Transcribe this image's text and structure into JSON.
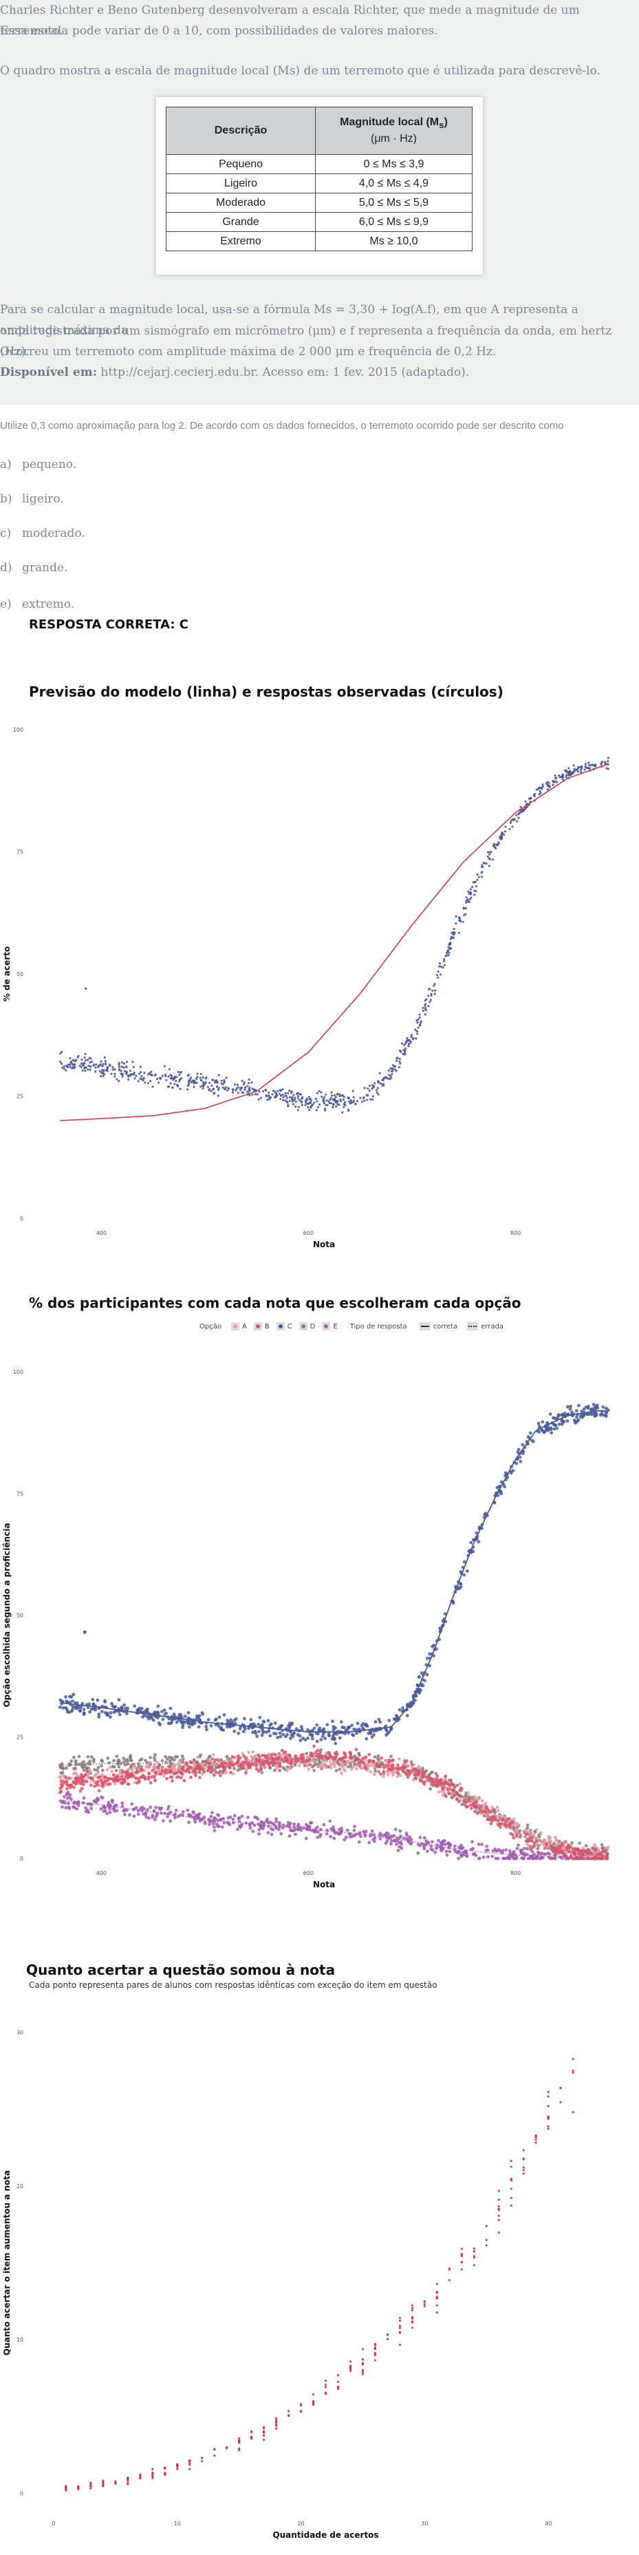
{
  "question": {
    "intro_line1": "Charles Richter e Beno Gutenberg desenvolveram a escala Richter, que mede a magnitude de um terremoto.",
    "intro_line2": "Essa escala pode variar de 0 a 10, com possibilidades de valores maiores.",
    "table_intro": "O quadro mostra a escala de magnitude local (Ms) de um terremoto que é utilizada para descrevê-lo.",
    "table": {
      "header_col1": "Descrição",
      "header_col2_line1": "Magnitude local (M",
      "header_col2_sub": "s",
      "header_col2_close": ")",
      "header_col2_line2": "(μm · Hz)",
      "rows": [
        {
          "desc": "Pequeno",
          "range": "0 ≤ Ms ≤ 3,9"
        },
        {
          "desc": "Ligeiro",
          "range": "4,0 ≤ Ms ≤ 4,9"
        },
        {
          "desc": "Moderado",
          "range": "5,0 ≤ Ms ≤ 5,9"
        },
        {
          "desc": "Grande",
          "range": "6,0 ≤ Ms ≤ 9,9"
        },
        {
          "desc": "Extremo",
          "range": "Ms ≥ 10,0"
        }
      ]
    },
    "formula_line1": "Para se calcular a magnitude local, usa-se a fórmula Ms = 3,30 + log(A.f), em que A representa a amplitude máxima da",
    "formula_line2": "onda registrada por um sismógrafo em micrômetro (μm) e f representa a frequência da onda, em hertz (Hz).",
    "formula_line3": "Ocorreu um terremoto com amplitude máxima de 2 000 μm e frequência de 0,2 Hz.",
    "source_label": "Disponível em:",
    "source_text": " http://cejarj.cecierj.edu.br. Acesso em: 1 fev. 2015 (adaptado).",
    "prompt": "Utilize 0,3 como aproximação para log 2. De acordo com os dados fornecidos, o terremoto ocorrido pode ser descrito como",
    "options": [
      {
        "letter": "a)",
        "text": "pequeno."
      },
      {
        "letter": "b)",
        "text": "ligeiro."
      },
      {
        "letter": "c)",
        "text": "moderado."
      },
      {
        "letter": "d)",
        "text": "grande."
      },
      {
        "letter": "e)",
        "text": "extremo."
      }
    ],
    "answer": "RESPOSTA CORRETA: C"
  },
  "colors": {
    "model_line": "#d03a4e",
    "observed_points": "#4a5a96",
    "opt_a": "#e59aa5",
    "opt_b": "#d9536a",
    "opt_c": "#4a5a96",
    "opt_d": "#8a7a7a",
    "opt_e": "#a15cb0",
    "chart3_points": "#c8344a"
  },
  "chart_data": [
    {
      "type": "scatter",
      "title": "Previsão do modelo (linha) e respostas observadas (círculos)",
      "xlabel": "Nota",
      "ylabel": "% de acerto",
      "x_ticks": [
        "400",
        "600",
        "800"
      ],
      "x_tick_values": [
        400,
        600,
        800
      ],
      "y_ticks": [
        "0",
        "25",
        "50",
        "75",
        "100"
      ],
      "xlim": [
        330,
        900
      ],
      "ylim": [
        0,
        100
      ],
      "series": [
        {
          "kind": "line",
          "x": [
            360,
            400,
            450,
            500,
            550,
            600,
            650,
            700,
            750,
            800,
            850,
            890
          ],
          "y": [
            20,
            20.4,
            21,
            22.5,
            26,
            34,
            46,
            60,
            73,
            83,
            90,
            93
          ]
        },
        {
          "kind": "points",
          "x": [
            360,
            400,
            450,
            500,
            550,
            580,
            600,
            620,
            640,
            660,
            680,
            700,
            720,
            740,
            760,
            780,
            800,
            820,
            840,
            860,
            880
          ],
          "y": [
            32,
            31,
            29,
            27.5,
            26,
            24.5,
            24,
            23.5,
            24,
            26,
            30,
            37,
            47,
            58,
            68,
            76,
            82,
            87,
            90,
            92,
            93
          ]
        }
      ]
    },
    {
      "type": "scatter",
      "title": "% dos participantes com cada nota que escolheram cada opção",
      "xlabel": "Nota",
      "ylabel": "Opção escolhida segundo a proficiência",
      "x_ticks": [
        "400",
        "600",
        "800"
      ],
      "x_tick_values": [
        400,
        600,
        800
      ],
      "y_ticks": [
        "0",
        "25",
        "50",
        "75",
        "100"
      ],
      "xlim": [
        330,
        900
      ],
      "ylim": [
        0,
        100
      ],
      "legend": {
        "option_title": "Opção",
        "options": [
          "A",
          "B",
          "C",
          "D",
          "E"
        ],
        "type_title": "Tipo de resposta",
        "types": [
          "correta",
          "errada"
        ]
      },
      "series": [
        {
          "name": "C",
          "x": [
            360,
            400,
            450,
            500,
            550,
            600,
            640,
            680,
            700,
            720,
            740,
            760,
            780,
            800,
            820,
            850,
            880
          ],
          "y": [
            32,
            31,
            29.5,
            28,
            27,
            26,
            26,
            27,
            32,
            42,
            54,
            65,
            74,
            82,
            88,
            91,
            92
          ]
        },
        {
          "name": "A",
          "x": [
            360,
            400,
            450,
            500,
            550,
            600,
            650,
            700,
            740,
            780,
            820,
            860,
            890
          ],
          "y": [
            16,
            17,
            18,
            19,
            20,
            20,
            19.5,
            18,
            14,
            9,
            4,
            1,
            0.5
          ]
        },
        {
          "name": "B",
          "x": [
            360,
            400,
            450,
            500,
            550,
            600,
            650,
            700,
            740,
            780,
            820,
            860,
            890
          ],
          "y": [
            15,
            16,
            17,
            18.5,
            20,
            21,
            20.5,
            18,
            14,
            8,
            3,
            1,
            0.5
          ]
        },
        {
          "name": "D",
          "x": [
            360,
            400,
            450,
            500,
            550,
            600,
            650,
            700,
            740,
            780,
            820,
            860,
            890
          ],
          "y": [
            19,
            19.5,
            19.5,
            19.5,
            19.5,
            20,
            20,
            18,
            14,
            9,
            4,
            1.5,
            0.5
          ]
        },
        {
          "name": "E",
          "x": [
            360,
            400,
            450,
            500,
            550,
            600,
            650,
            700,
            740,
            780,
            820,
            860,
            890
          ],
          "y": [
            12,
            11,
            9.5,
            8,
            7,
            6,
            5,
            3.5,
            2,
            1,
            0.5,
            0,
            0
          ]
        }
      ]
    },
    {
      "type": "scatter",
      "title": "Quanto acertar a questão somou à nota",
      "subtitle": "Cada ponto representa pares de alunos com respostas idênticas com exceção do item em questão",
      "xlabel": "Quantidade de acertos",
      "ylabel": "Quanto acertar o item aumentou a nota",
      "x_ticks": [
        "0",
        "10",
        "20",
        "30",
        "40"
      ],
      "x_tick_values": [
        0,
        10,
        20,
        30,
        40
      ],
      "y_ticks": [
        "0",
        "10",
        "20",
        "30"
      ],
      "xlim": [
        -2,
        46
      ],
      "ylim": [
        -1,
        31
      ],
      "series": [
        {
          "name": "pares",
          "x": [
            1,
            3,
            5,
            7,
            9,
            11,
            13,
            15,
            17,
            19,
            21,
            23,
            25,
            27,
            29,
            31,
            33,
            35,
            37,
            39,
            41,
            42
          ],
          "y": [
            0.3,
            0.5,
            0.8,
            1.1,
            1.5,
            2,
            2.6,
            3.3,
            4.1,
            5,
            6.1,
            7.3,
            8.6,
            10,
            11.5,
            13,
            15,
            17,
            20,
            23,
            26,
            27
          ]
        }
      ]
    }
  ]
}
